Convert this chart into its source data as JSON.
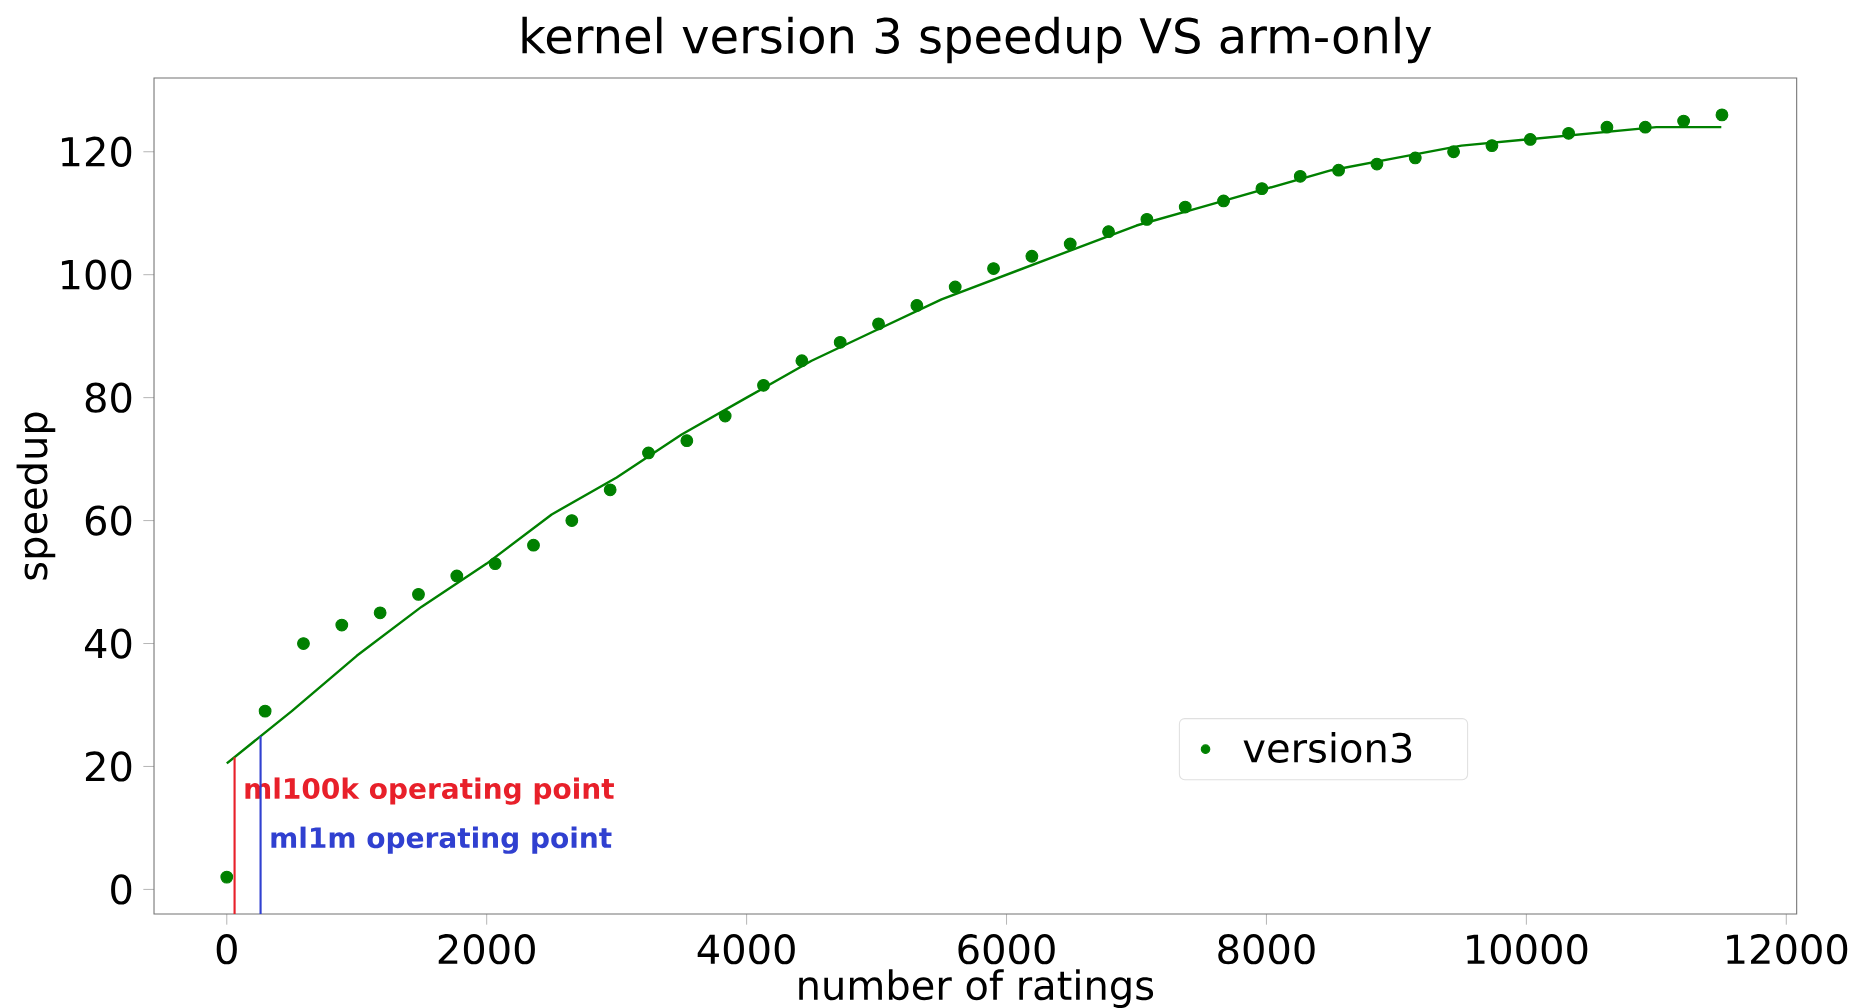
{
  "chart_data": {
    "type": "scatter",
    "title": "kernel version 3 speedup VS arm-only",
    "xlabel": "number of ratings",
    "ylabel": "speedup",
    "xlim": [
      -560,
      12080
    ],
    "ylim": [
      -4,
      132
    ],
    "xticks": [
      0,
      2000,
      4000,
      6000,
      8000,
      10000,
      12000
    ],
    "yticks": [
      0,
      20,
      40,
      60,
      80,
      100,
      120
    ],
    "legend": "bottom right",
    "marker": "circle",
    "grid": false,
    "series": [
      {
        "name": "version3",
        "color": "#008000",
        "x": [
          0,
          295,
          590,
          885,
          1180,
          1475,
          1770,
          2065,
          2360,
          2655,
          2950,
          3245,
          3540,
          3835,
          4130,
          4425,
          4720,
          5015,
          5310,
          5605,
          5900,
          6195,
          6490,
          6785,
          7080,
          7375,
          7670,
          7965,
          8260,
          8555,
          8850,
          9145,
          9440,
          9735,
          10030,
          10325,
          10620,
          10915,
          11210,
          11505
        ],
        "values": [
          2,
          29,
          40,
          43,
          45,
          48,
          51,
          53,
          56,
          60,
          65,
          71,
          73,
          77,
          82,
          86,
          89,
          92,
          95,
          98,
          101,
          103,
          105,
          107,
          109,
          111,
          112,
          114,
          116,
          117,
          118,
          119,
          120,
          121,
          122,
          123,
          124,
          124,
          125,
          126
        ]
      },
      {
        "type": "line",
        "marker": "none",
        "color": "#008000",
        "x": [
          0,
          500,
          1000,
          1500,
          2000,
          2500,
          3000,
          3500,
          4000,
          4500,
          5000,
          5500,
          6000,
          6500,
          7000,
          7500,
          8000,
          8500,
          9000,
          9500,
          10000,
          10500,
          11000,
          11500
        ],
        "values": [
          20.5,
          29,
          38,
          46,
          53,
          61,
          67,
          74,
          80,
          86,
          91,
          96,
          100,
          104,
          108,
          111,
          114,
          117,
          119,
          121,
          122,
          123,
          124,
          124
        ]
      }
    ],
    "ref_lines": [
      {
        "axis": "x",
        "value": 60,
        "label": "ml100k operating point",
        "color": "#e8202a"
      },
      {
        "axis": "x",
        "value": 260,
        "label": "ml1m operating point",
        "color": "#3040d0"
      }
    ]
  }
}
